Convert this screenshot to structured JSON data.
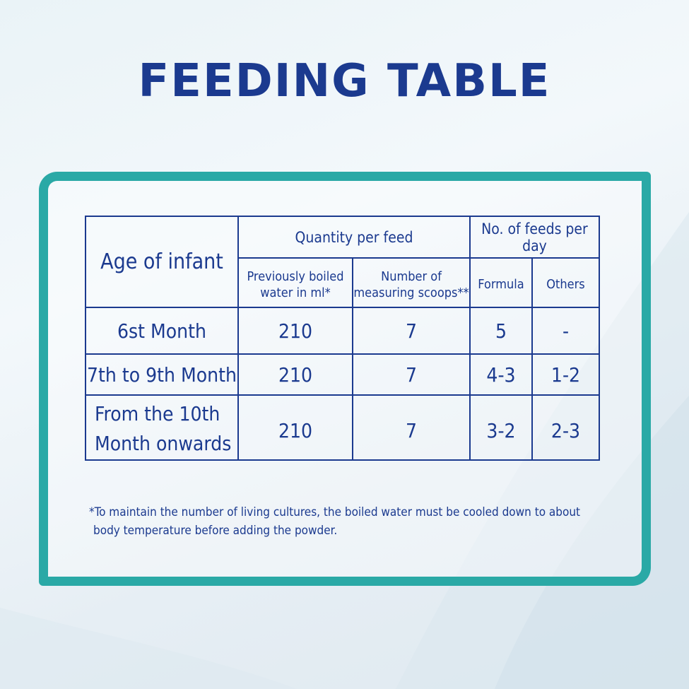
{
  "title": "FEEDING TABLE",
  "table": {
    "header_age": "Age of infant",
    "header_quantity": "Quantity per feed",
    "header_feeds": "No. of feeds per day",
    "sub_water": "Previously boiled water in ml*",
    "sub_scoops": "Number of measuring scoops**",
    "sub_formula": "Formula",
    "sub_others": "Others",
    "rows": [
      {
        "age": "6st Month",
        "water": "210",
        "scoops": "7",
        "formula": "5",
        "others": "-"
      },
      {
        "age": "7th to 9th Month",
        "water": "210",
        "scoops": "7",
        "formula": "4-3",
        "others": "1-2"
      },
      {
        "age_line1": "From the 10th",
        "age_line2": "Month onwards",
        "water": "210",
        "scoops": "7",
        "formula": "3-2",
        "others": "2-3"
      }
    ]
  },
  "footnote": {
    "line1": "*To maintain the number of living cultures, the boiled water must be cooled down to about",
    "line2": "body temperature  before adding the powder."
  },
  "colors": {
    "text": "#1b3a8f",
    "frame": "#2aa9a6"
  }
}
